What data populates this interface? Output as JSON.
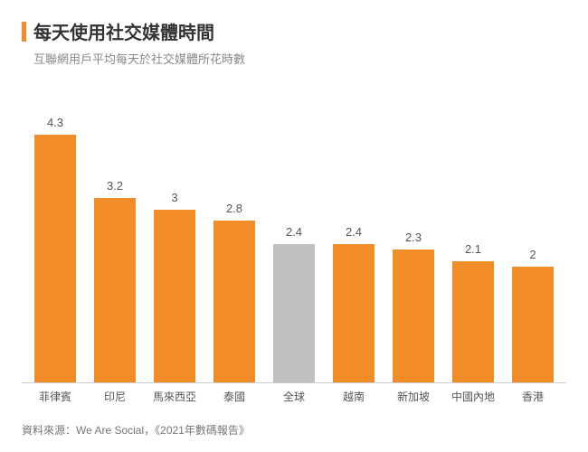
{
  "chart": {
    "type": "bar",
    "title": "每天使用社交媒體時間",
    "subtitle": "互聯網用戶平均每天於社交媒體所花時數",
    "accent_color": "#f28c28",
    "background_color": "#ffffff",
    "title_color": "#333333",
    "title_fontsize": 20,
    "subtitle_color": "#888888",
    "subtitle_fontsize": 13,
    "bar_colors": [
      "#f28c28",
      "#f28c28",
      "#f28c28",
      "#f28c28",
      "#c0c0c0",
      "#f28c28",
      "#f28c28",
      "#f28c28",
      "#f28c28"
    ],
    "categories": [
      "菲律賓",
      "印尼",
      "馬來西亞",
      "泰國",
      "全球",
      "越南",
      "新加坡",
      "中國內地",
      "香港"
    ],
    "values": [
      4.3,
      3.2,
      3,
      2.8,
      2.4,
      2.4,
      2.3,
      2.1,
      2
    ],
    "ylim_max": 5.0,
    "bar_width_pct": 70,
    "value_label_color": "#555555",
    "value_label_fontsize": 13,
    "xlabel_color": "#555555",
    "xlabel_fontsize": 12,
    "axis_line_color": "#cccccc",
    "source": "資料來源：We Are Social，《2021年數碼報告》",
    "source_color": "#777777",
    "source_fontsize": 12
  }
}
